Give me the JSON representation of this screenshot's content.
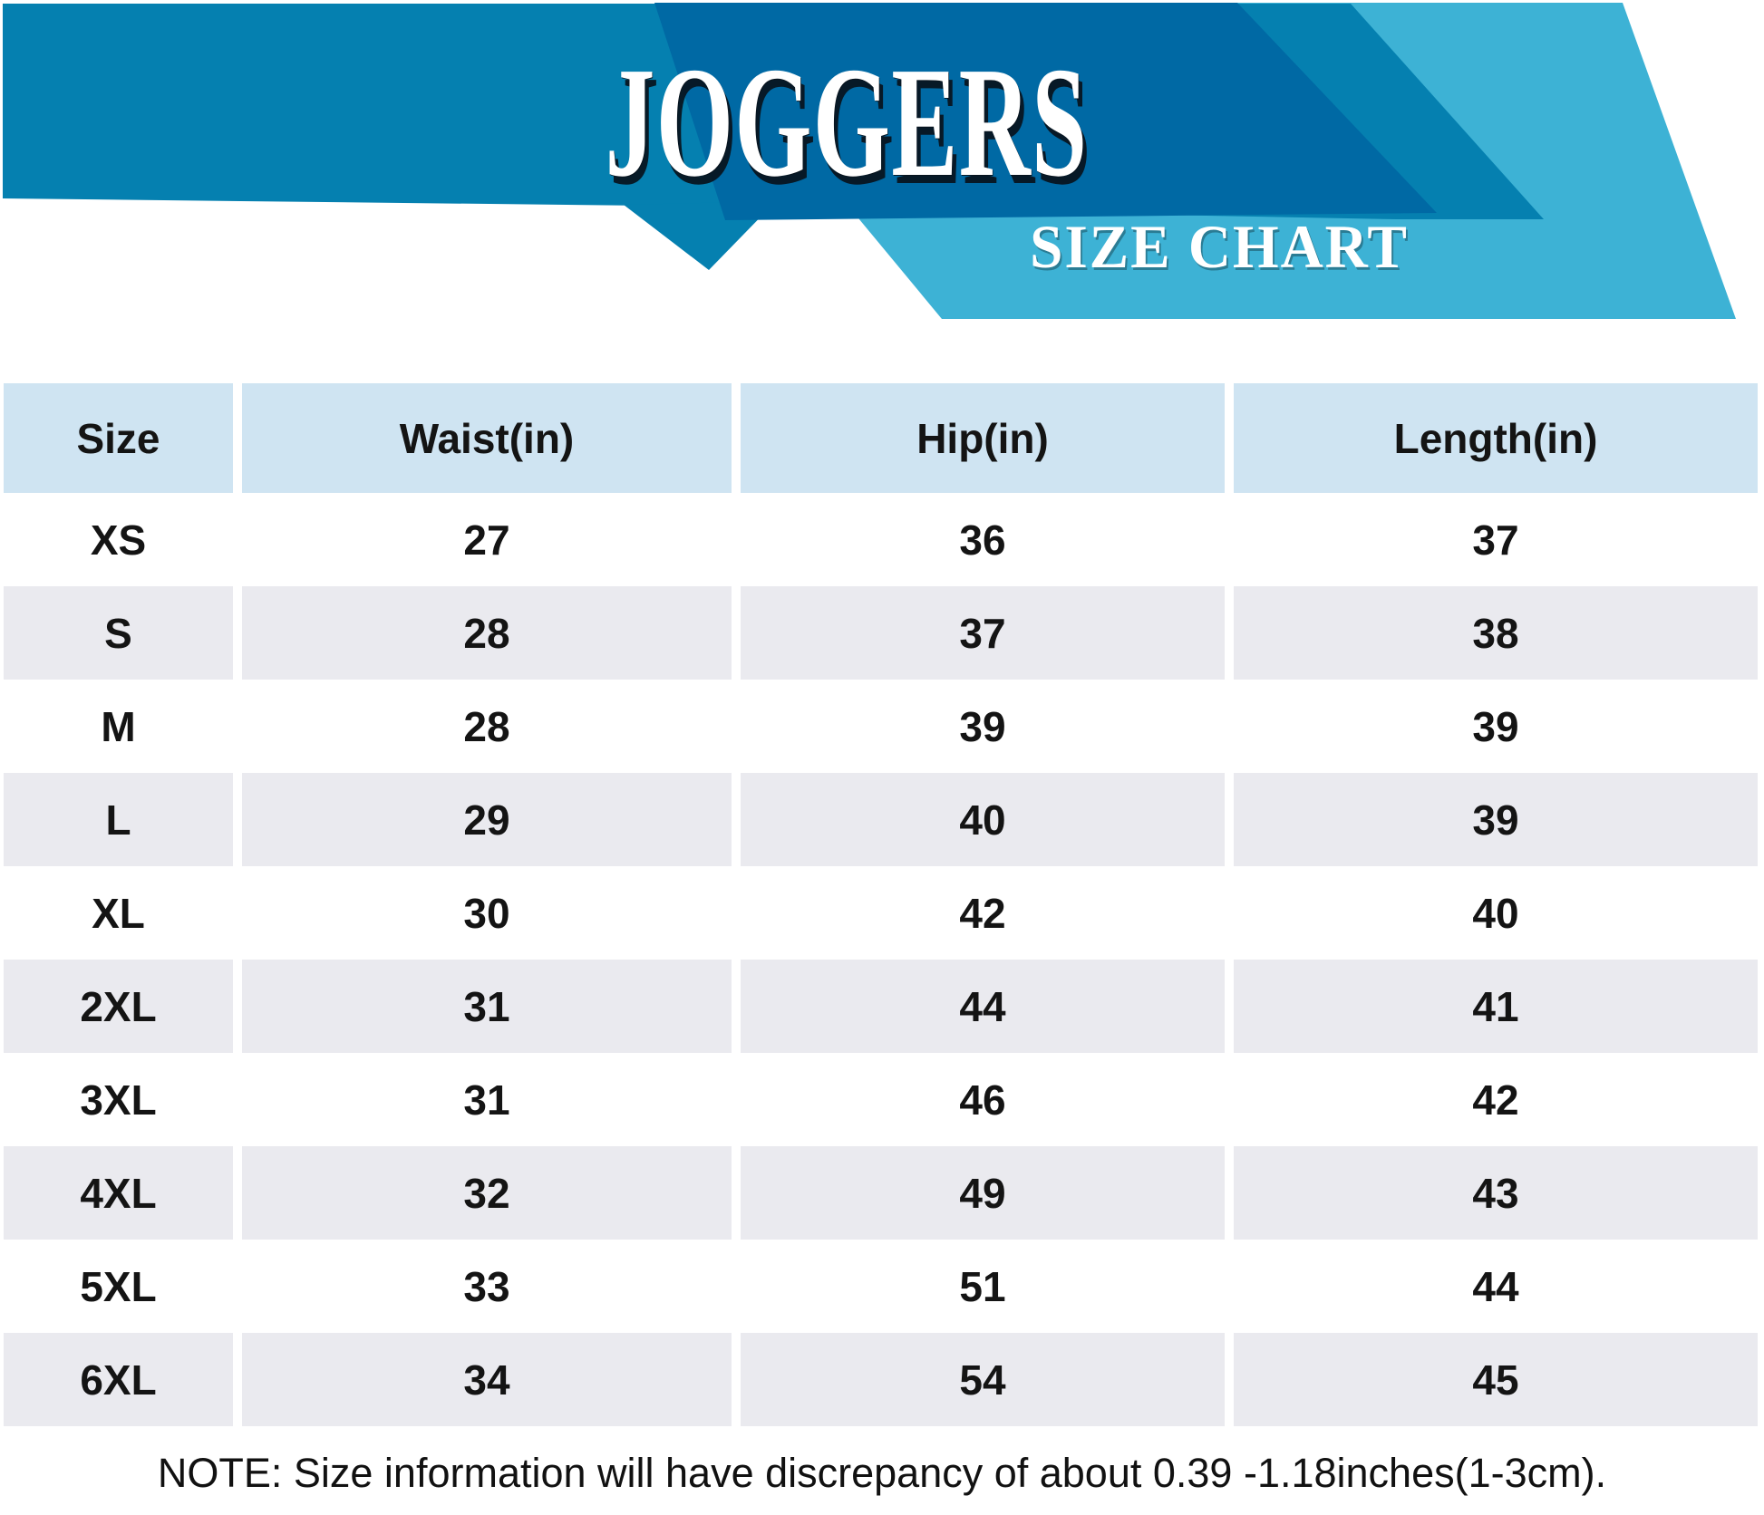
{
  "header": {
    "title": "JOGGERS",
    "subtitle": "SIZE CHART",
    "colors": {
      "banner": "#0580b0",
      "navy": "#0069a4",
      "cyan": "#3db2d5"
    }
  },
  "table": {
    "columns": [
      "Size",
      "Waist(in)",
      "Hip(in)",
      "Length(in)"
    ],
    "rows": [
      {
        "size": "XS",
        "waist": "27",
        "hip": "36",
        "length": "37"
      },
      {
        "size": "S",
        "waist": "28",
        "hip": "37",
        "length": "38"
      },
      {
        "size": "M",
        "waist": "28",
        "hip": "39",
        "length": "39"
      },
      {
        "size": "L",
        "waist": "29",
        "hip": "40",
        "length": "39"
      },
      {
        "size": "XL",
        "waist": "30",
        "hip": "42",
        "length": "40"
      },
      {
        "size": "2XL",
        "waist": "31",
        "hip": "44",
        "length": "41"
      },
      {
        "size": "3XL",
        "waist": "31",
        "hip": "46",
        "length": "42"
      },
      {
        "size": "4XL",
        "waist": "32",
        "hip": "49",
        "length": "43"
      },
      {
        "size": "5XL",
        "waist": "33",
        "hip": "51",
        "length": "44"
      },
      {
        "size": "6XL",
        "waist": "34",
        "hip": "54",
        "length": "45"
      }
    ],
    "colors": {
      "header_bg": "#cfe4f2",
      "row_bg": "#ffffff",
      "row_alt_bg": "#eaeaef",
      "text": "#141414"
    }
  },
  "note": "NOTE: Size information will have discrepancy of about 0.39 -1.18inches(1-3cm)."
}
